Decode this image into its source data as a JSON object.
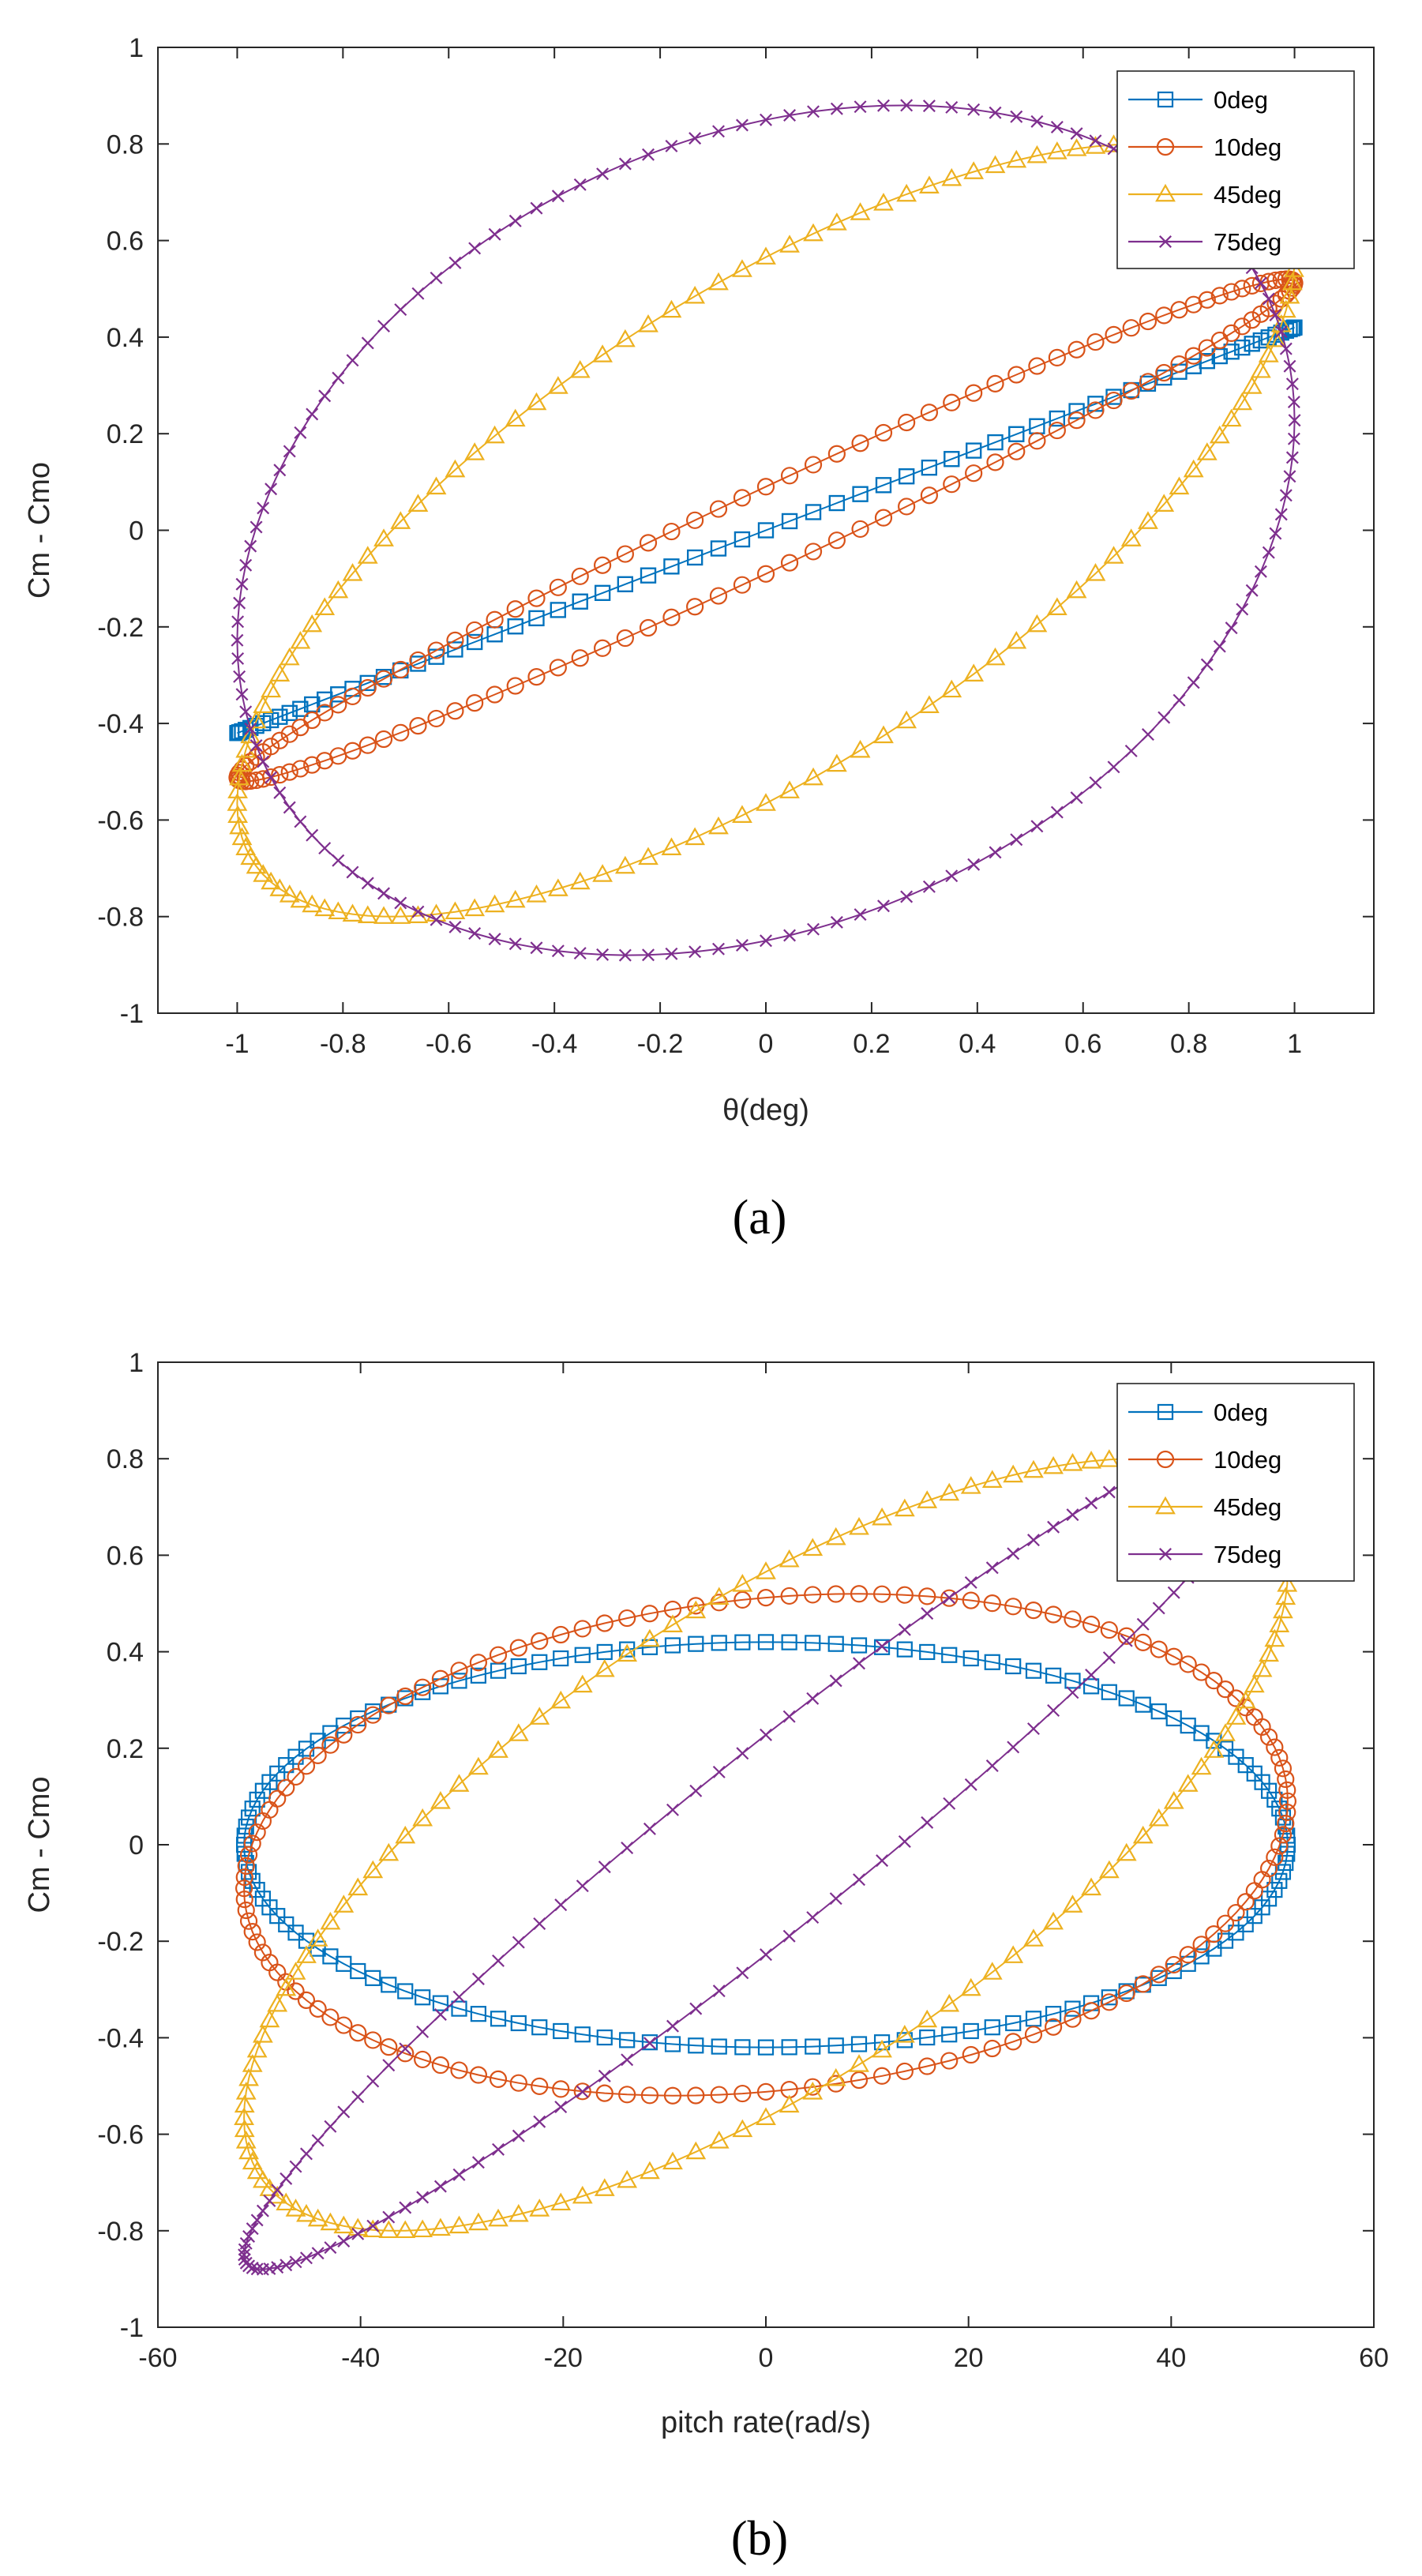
{
  "figure": {
    "captions": [
      "(a)",
      "(b)"
    ]
  },
  "chart_data": [
    {
      "type": "scatter",
      "caption": "(a)",
      "title": "",
      "xlabel": "θ(deg)",
      "ylabel": "Cm - Cmo",
      "xlim": [
        -1.15,
        1.15
      ],
      "ylim": [
        -1,
        1
      ],
      "x_ticks": [
        -1,
        -0.8,
        -0.6,
        -0.4,
        -0.2,
        0,
        0.2,
        0.4,
        0.6,
        0.8,
        1
      ],
      "x_tick_labels": [
        "-1",
        "-0.8",
        "-0.6",
        "-0.4",
        "-0.2",
        "0",
        "0.2",
        "0.4",
        "0.6",
        "0.8",
        "1"
      ],
      "y_ticks": [
        -1,
        -0.8,
        -0.6,
        -0.4,
        -0.2,
        0,
        0.2,
        0.4,
        0.6,
        0.8,
        1
      ],
      "y_tick_labels": [
        "-1",
        "-0.8",
        "-0.6",
        "-0.4",
        "-0.2",
        "0",
        "0.2",
        "0.4",
        "0.6",
        "0.8",
        "1"
      ],
      "legend_position": "top-right",
      "grid": false,
      "curve": "ellipse",
      "series": [
        {
          "name": "0deg",
          "color": "#0072BD",
          "marker": "square",
          "x_amplitude": 1.0,
          "y_amplitude": 0.42,
          "phase_deg": 0
        },
        {
          "name": "10deg",
          "color": "#D95319",
          "marker": "circle",
          "x_amplitude": 1.0,
          "y_amplitude": 0.52,
          "phase_deg": 10
        },
        {
          "name": "45deg",
          "color": "#EDB120",
          "marker": "triangle",
          "x_amplitude": 1.0,
          "y_amplitude": 0.8,
          "phase_deg": 45
        },
        {
          "name": "75deg",
          "color": "#7E2F8E",
          "marker": "x",
          "x_amplitude": 1.0,
          "y_amplitude": 0.88,
          "phase_deg": 75
        }
      ]
    },
    {
      "type": "scatter",
      "caption": "(b)",
      "title": "",
      "xlabel": "pitch rate(rad/s)",
      "ylabel": "Cm - Cmo",
      "xlim": [
        -60,
        60
      ],
      "ylim": [
        -1,
        1
      ],
      "x_ticks": [
        -60,
        -40,
        -20,
        0,
        20,
        40,
        60
      ],
      "x_tick_labels": [
        "-60",
        "-40",
        "-20",
        "0",
        "20",
        "40",
        "60"
      ],
      "y_ticks": [
        -1,
        -0.8,
        -0.6,
        -0.4,
        -0.2,
        0,
        0.2,
        0.4,
        0.6,
        0.8,
        1
      ],
      "y_tick_labels": [
        "-1",
        "-0.8",
        "-0.6",
        "-0.4",
        "-0.2",
        "0",
        "0.2",
        "0.4",
        "0.6",
        "0.8",
        "1"
      ],
      "legend_position": "top-right",
      "grid": false,
      "curve": "ellipse",
      "series": [
        {
          "name": "0deg",
          "color": "#0072BD",
          "marker": "square",
          "x_amplitude": 51.5,
          "y_amplitude": 0.42,
          "phase_deg": -90
        },
        {
          "name": "10deg",
          "color": "#D95319",
          "marker": "circle",
          "x_amplitude": 51.5,
          "y_amplitude": 0.52,
          "phase_deg": -80
        },
        {
          "name": "45deg",
          "color": "#EDB120",
          "marker": "triangle",
          "x_amplitude": 51.5,
          "y_amplitude": 0.8,
          "phase_deg": -45
        },
        {
          "name": "75deg",
          "color": "#7E2F8E",
          "marker": "x",
          "x_amplitude": 51.5,
          "y_amplitude": 0.88,
          "phase_deg": -15
        }
      ]
    }
  ]
}
